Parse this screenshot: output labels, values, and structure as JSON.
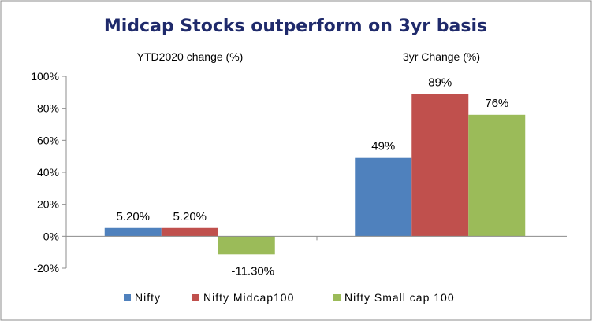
{
  "chart_data": {
    "type": "bar",
    "title": "Midcap Stocks outperform on 3yr basis",
    "title_color": "#1F2A6B",
    "groups": [
      "YTD2020 change (%)",
      "3yr Change (%)"
    ],
    "series": [
      {
        "name": "Nifty",
        "values": [
          5.2,
          49
        ],
        "labels": [
          "5.20%",
          "49%"
        ],
        "color": "#4F81BD"
      },
      {
        "name": "Nifty Midcap100",
        "values": [
          5.2,
          89
        ],
        "labels": [
          "5.20%",
          "89%"
        ],
        "color": "#C0504D"
      },
      {
        "name": "Nifty Small cap 100",
        "values": [
          -11.3,
          76
        ],
        "labels": [
          "-11.30%",
          "76%"
        ],
        "color": "#9BBB59"
      }
    ],
    "yticks": [
      "-20%",
      "0%",
      "20%",
      "40%",
      "60%",
      "80%",
      "100%"
    ],
    "ytick_values": [
      -20,
      0,
      20,
      40,
      60,
      80,
      100
    ],
    "ylim": [
      -20,
      100
    ],
    "grid": false,
    "legend_position": "bottom"
  }
}
